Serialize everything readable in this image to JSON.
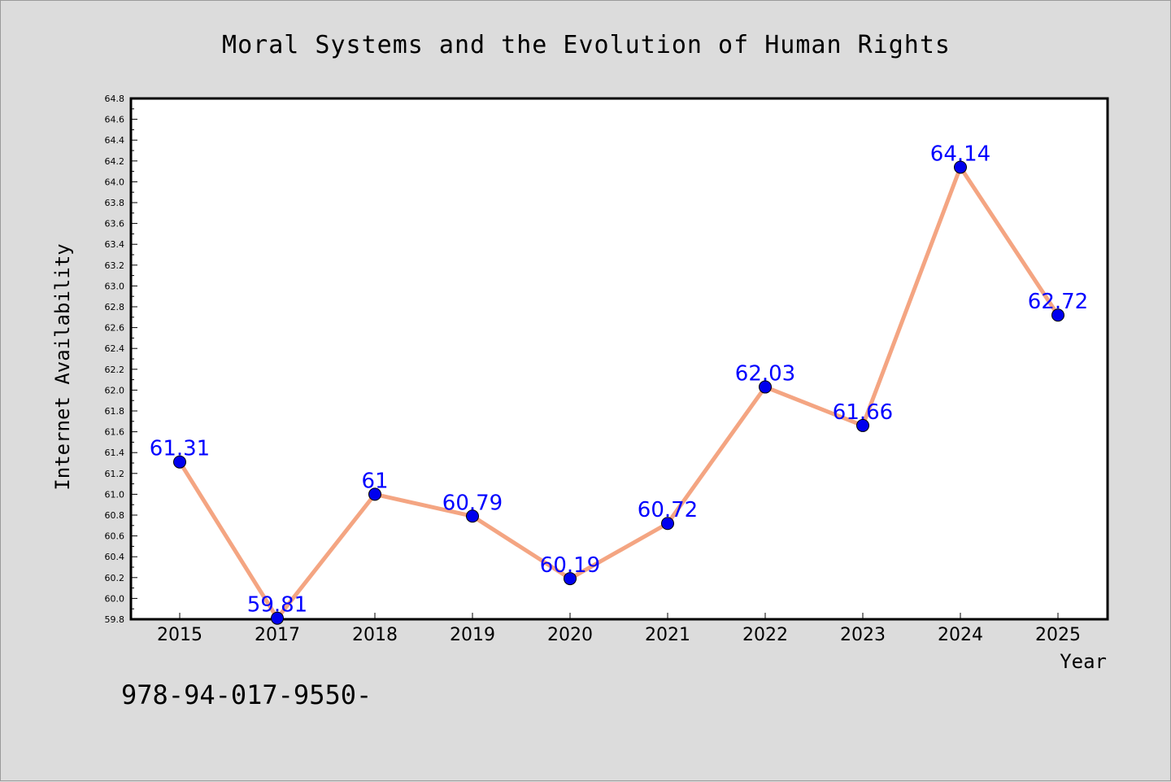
{
  "chart_data": {
    "type": "line",
    "title": "Moral Systems and the Evolution of Human Rights",
    "xlabel": "Year",
    "ylabel": "Internet Availability",
    "categories": [
      "2015",
      "2017",
      "2018",
      "2019",
      "2020",
      "2021",
      "2022",
      "2023",
      "2024",
      "2025"
    ],
    "series": [
      {
        "values": [
          61.31,
          59.81,
          61,
          60.79,
          60.19,
          60.72,
          62.03,
          61.66,
          64.14,
          62.72
        ],
        "labels": [
          "61.31",
          "59.81",
          "61",
          "60.79",
          "60.19",
          "60.72",
          "62.03",
          "61.66",
          "64.14",
          "62.72"
        ]
      }
    ],
    "ylim": [
      59.8,
      64.8
    ],
    "yticks": [
      "59.8",
      "60.0",
      "60.2",
      "60.4",
      "60.6",
      "60.8",
      "61.0",
      "61.2",
      "61.4",
      "61.6",
      "61.8",
      "62.0",
      "62.2",
      "62.4",
      "62.6",
      "62.8",
      "63.0",
      "63.2",
      "63.4",
      "63.6",
      "63.8",
      "64.0",
      "64.2",
      "64.4",
      "64.6",
      "64.8"
    ],
    "grid": false,
    "colors": {
      "line": "#f4a582",
      "marker": "#0000ee",
      "label": "#0000ff",
      "background": "#dcdcdc",
      "plot_background": "#ffffff"
    }
  },
  "footer": {
    "text": "978-94-017-9550-"
  }
}
